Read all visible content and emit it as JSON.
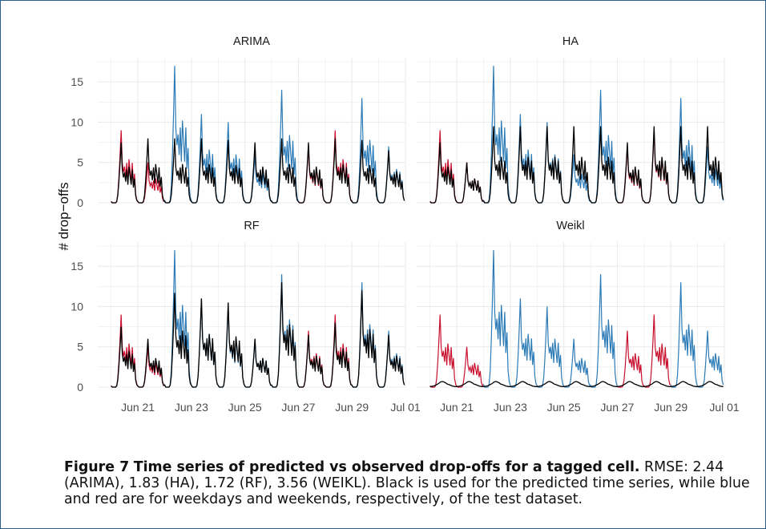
{
  "chart_data": {
    "type": "line",
    "ylabel": "# drop−offs",
    "xlabel": "",
    "ylim": [
      0,
      18
    ],
    "yticks": [
      0,
      5,
      10,
      15
    ],
    "xticks": [
      "Jun 21",
      "Jun 23",
      "Jun 25",
      "Jun 27",
      "Jun 29",
      "Jul 01"
    ],
    "x_range_days": [
      19.5,
      31.0
    ],
    "grid": true,
    "colors": {
      "predicted": "#000000",
      "weekday": "#2c7bb6",
      "weekend": "#c8102e"
    },
    "weekend_days": [
      20,
      21,
      27,
      28
    ],
    "observed_daily_peaks": [
      {
        "day": 20,
        "peak": 9.0
      },
      {
        "day": 21,
        "peak": 5.0
      },
      {
        "day": 22,
        "peak": 17.0
      },
      {
        "day": 23,
        "peak": 11.0
      },
      {
        "day": 24,
        "peak": 10.0
      },
      {
        "day": 25,
        "peak": 6.0
      },
      {
        "day": 26,
        "peak": 14.0
      },
      {
        "day": 27,
        "peak": 7.0
      },
      {
        "day": 28,
        "peak": 9.0
      },
      {
        "day": 29,
        "peak": 13.0
      },
      {
        "day": 30,
        "peak": 7.0
      }
    ],
    "panels": [
      {
        "name": "ARIMA",
        "predicted_daily_peaks": [
          7.5,
          8.0,
          8.0,
          8.0,
          7.8,
          7.5,
          8.0,
          7.5,
          8.0,
          7.8,
          6.5
        ]
      },
      {
        "name": "HA",
        "predicted_daily_peaks": [
          7.5,
          5.0,
          9.5,
          9.5,
          9.5,
          9.5,
          9.5,
          7.5,
          9.5,
          9.5,
          9.5
        ]
      },
      {
        "name": "RF",
        "predicted_daily_peaks": [
          7.5,
          6.0,
          11.7,
          11.0,
          10.5,
          6.0,
          13.0,
          6.5,
          8.0,
          12.0,
          6.5
        ]
      },
      {
        "name": "Weikl",
        "predicted_daily_peaks": [
          0.7,
          0.7,
          0.7,
          0.7,
          0.7,
          0.7,
          0.7,
          0.7,
          0.7,
          0.7,
          0.7
        ]
      }
    ]
  },
  "caption": {
    "figure_label": "Figure 7",
    "title": "Time series of predicted vs observed drop-offs for a tagged cell.",
    "text": "RMSE: 2.44 (ARIMA), 1.83 (HA), 1.72 (RF), 3.56 (WEIKL). Black is used for the predicted time series, while blue and red are for weekdays and weekends, respectively, of the test dataset."
  }
}
